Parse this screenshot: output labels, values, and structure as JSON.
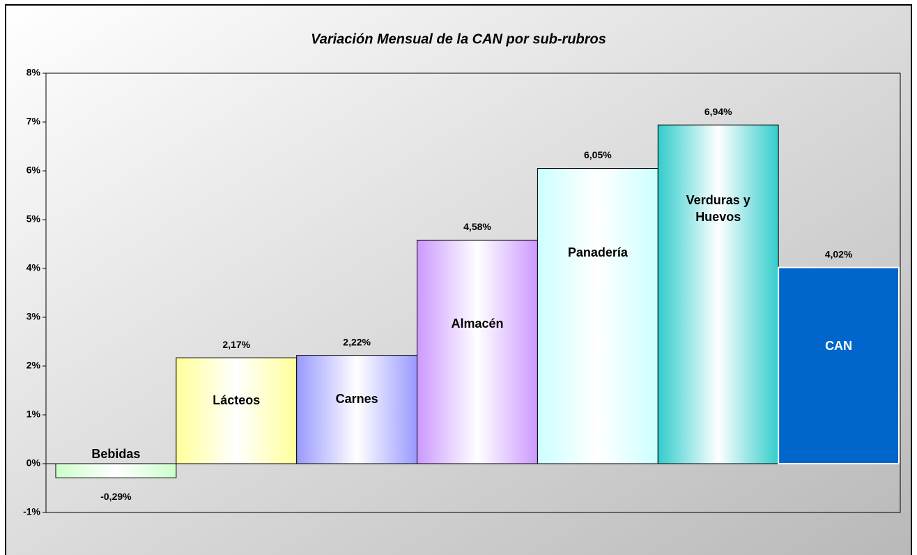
{
  "chart_data": {
    "type": "bar",
    "title": "Variación Mensual de la CAN por sub-rubros",
    "categories": [
      "Bebidas",
      "Lácteos",
      "Carnes",
      "Almacén",
      "Panadería",
      "Verduras y Huevos",
      "CAN"
    ],
    "values": [
      -0.29,
      2.17,
      2.22,
      4.58,
      6.05,
      6.94,
      4.02
    ],
    "value_labels": [
      "-0,29%",
      "2,17%",
      "2,22%",
      "4,58%",
      "6,05%",
      "6,94%",
      "4,02%"
    ],
    "colors": [
      "#ccffcc",
      "#ffff99",
      "#9999ff",
      "#cc99ff",
      "#ccffff",
      "#33cccc",
      "#0066cc"
    ],
    "ylim": [
      -1,
      8
    ],
    "yticks": [
      {
        "value": -1,
        "label": "-1%"
      },
      {
        "value": 0,
        "label": "0%"
      },
      {
        "value": 1,
        "label": "1%"
      },
      {
        "value": 2,
        "label": "2%"
      },
      {
        "value": 3,
        "label": "3%"
      },
      {
        "value": 4,
        "label": "4%"
      },
      {
        "value": 5,
        "label": "5%"
      },
      {
        "value": 6,
        "label": "6%"
      },
      {
        "value": 7,
        "label": "7%"
      },
      {
        "value": 8,
        "label": "8%"
      }
    ]
  }
}
